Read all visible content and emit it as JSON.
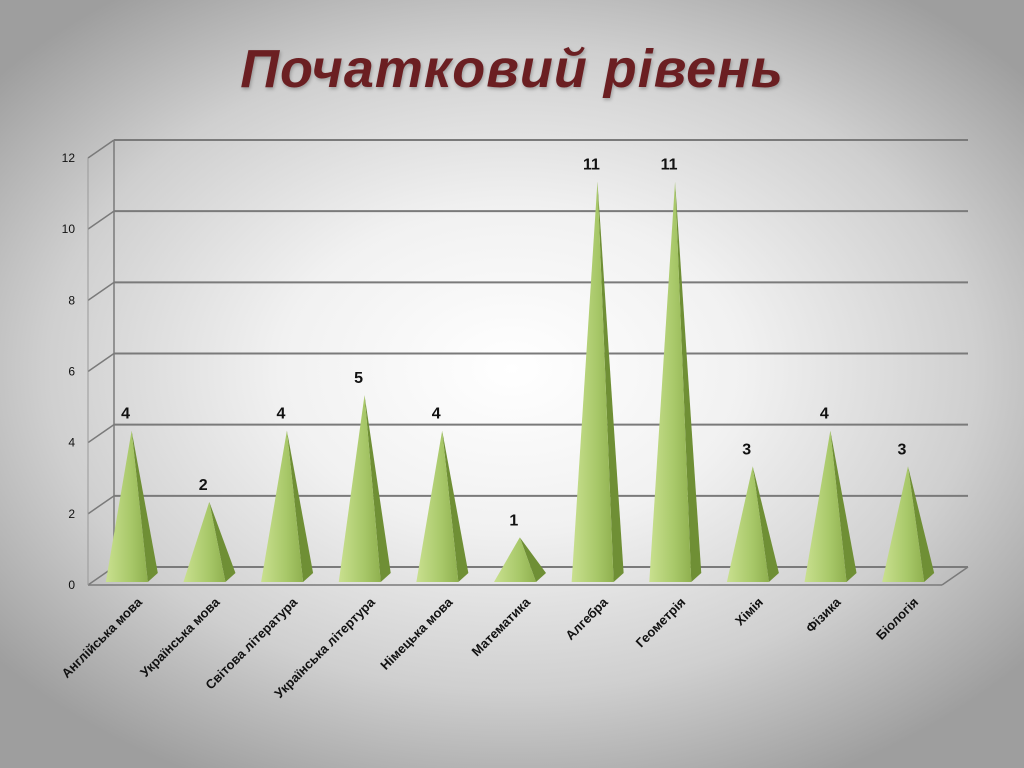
{
  "slide": {
    "title": "Початковий рівень"
  },
  "chart_data": {
    "type": "bar",
    "style": "3d-pyramid",
    "categories": [
      "Англійська мова",
      "Українська мова",
      "Світова література",
      "Українська літертура",
      "Німецька мова",
      "Математика",
      "Алгебра",
      "Геометрія",
      "Хімія",
      "Фізика",
      "Біологія"
    ],
    "values": [
      4,
      2,
      4,
      5,
      4,
      1,
      11,
      11,
      3,
      4,
      3
    ],
    "ylim": [
      0,
      12
    ],
    "yticks": [
      "0",
      "2",
      "4",
      "6",
      "8",
      "10",
      "12"
    ],
    "grid": true,
    "legend": "none",
    "data_labels": true,
    "colors": {
      "bar_front": "#a8c869",
      "bar_side": "#6f8f35",
      "bar_tip": "#c9e08f",
      "grid": "#7a7a7a"
    }
  }
}
